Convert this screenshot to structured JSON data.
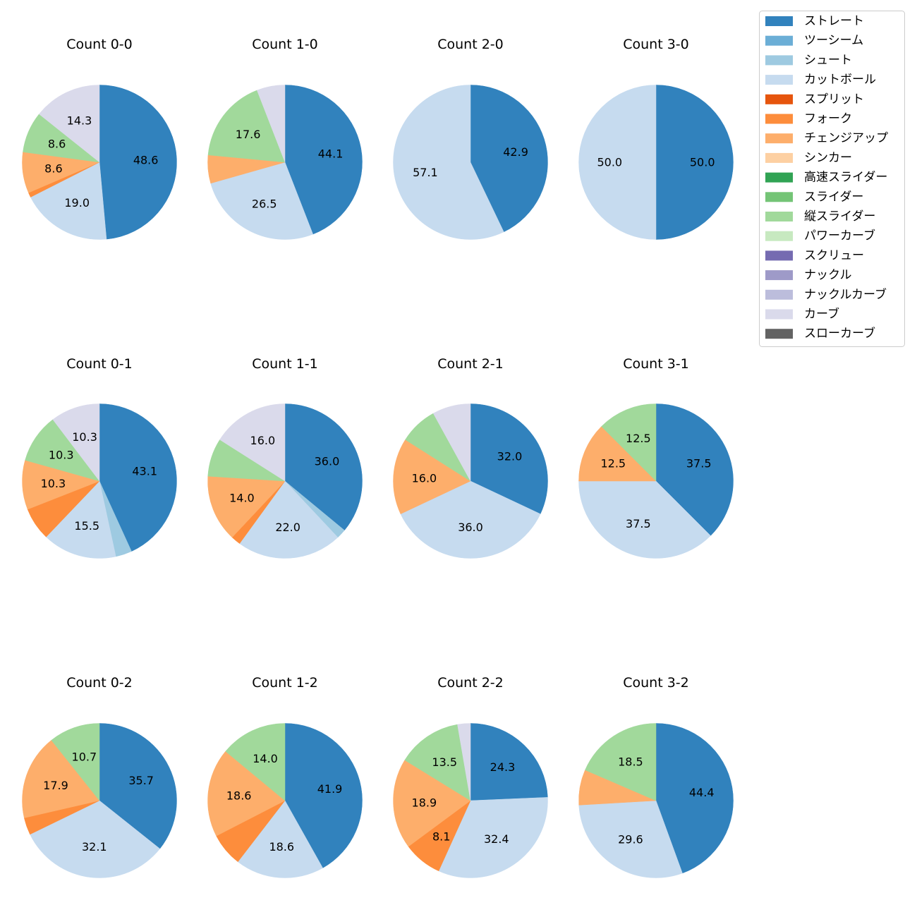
{
  "chart_data": {
    "type": "pie",
    "legend": {
      "placement": "top-right",
      "entries": [
        {
          "name": "ストレート",
          "color": "#3182bd"
        },
        {
          "name": "ツーシーム",
          "color": "#6baed6"
        },
        {
          "name": "シュート",
          "color": "#9ecae1"
        },
        {
          "name": "カットボール",
          "color": "#c6dbef"
        },
        {
          "name": "スプリット",
          "color": "#e6550d"
        },
        {
          "name": "フォーク",
          "color": "#fd8d3c"
        },
        {
          "name": "チェンジアップ",
          "color": "#fdae6b"
        },
        {
          "name": "シンカー",
          "color": "#fdd0a2"
        },
        {
          "name": "高速スライダー",
          "color": "#31a354"
        },
        {
          "name": "スライダー",
          "color": "#74c476"
        },
        {
          "name": "縦スライダー",
          "color": "#a1d99b"
        },
        {
          "name": "パワーカーブ",
          "color": "#c7e9c0"
        },
        {
          "name": "スクリュー",
          "color": "#756bb1"
        },
        {
          "name": "ナックル",
          "color": "#9e9ac8"
        },
        {
          "name": "ナックルカーブ",
          "color": "#bcbddc"
        },
        {
          "name": "カーブ",
          "color": "#dadaeb"
        },
        {
          "name": "スローカーブ",
          "color": "#636363"
        }
      ]
    },
    "charts": [
      {
        "title": "Count 0-0",
        "slices": [
          {
            "type": "ストレート",
            "value": 48.6,
            "label": "48.6"
          },
          {
            "type": "カットボール",
            "value": 19.0,
            "label": "19.0"
          },
          {
            "type": "フォーク",
            "value": 1.0,
            "label": ""
          },
          {
            "type": "チェンジアップ",
            "value": 8.6,
            "label": "8.6"
          },
          {
            "type": "縦スライダー",
            "value": 8.6,
            "label": "8.6"
          },
          {
            "type": "カーブ",
            "value": 14.3,
            "label": "14.3"
          }
        ]
      },
      {
        "title": "Count 1-0",
        "slices": [
          {
            "type": "ストレート",
            "value": 44.1,
            "label": "44.1"
          },
          {
            "type": "カットボール",
            "value": 26.5,
            "label": "26.5"
          },
          {
            "type": "チェンジアップ",
            "value": 5.9,
            "label": ""
          },
          {
            "type": "縦スライダー",
            "value": 17.6,
            "label": "17.6"
          },
          {
            "type": "カーブ",
            "value": 5.9,
            "label": ""
          }
        ]
      },
      {
        "title": "Count 2-0",
        "slices": [
          {
            "type": "ストレート",
            "value": 42.9,
            "label": "42.9"
          },
          {
            "type": "カットボール",
            "value": 57.1,
            "label": "57.1"
          }
        ]
      },
      {
        "title": "Count 3-0",
        "slices": [
          {
            "type": "ストレート",
            "value": 50.0,
            "label": "50.0"
          },
          {
            "type": "カットボール",
            "value": 50.0,
            "label": "50.0"
          }
        ]
      },
      {
        "title": "Count 0-1",
        "slices": [
          {
            "type": "ストレート",
            "value": 43.1,
            "label": "43.1"
          },
          {
            "type": "シュート",
            "value": 3.4,
            "label": ""
          },
          {
            "type": "カットボール",
            "value": 15.5,
            "label": "15.5"
          },
          {
            "type": "フォーク",
            "value": 6.9,
            "label": ""
          },
          {
            "type": "チェンジアップ",
            "value": 10.3,
            "label": "10.3"
          },
          {
            "type": "縦スライダー",
            "value": 10.3,
            "label": "10.3"
          },
          {
            "type": "カーブ",
            "value": 10.3,
            "label": "10.3"
          }
        ]
      },
      {
        "title": "Count 1-1",
        "slices": [
          {
            "type": "ストレート",
            "value": 36.0,
            "label": "36.0"
          },
          {
            "type": "シュート",
            "value": 2.0,
            "label": ""
          },
          {
            "type": "カットボール",
            "value": 22.0,
            "label": "22.0"
          },
          {
            "type": "フォーク",
            "value": 2.0,
            "label": ""
          },
          {
            "type": "チェンジアップ",
            "value": 14.0,
            "label": "14.0"
          },
          {
            "type": "縦スライダー",
            "value": 8.0,
            "label": ""
          },
          {
            "type": "カーブ",
            "value": 16.0,
            "label": "16.0"
          }
        ]
      },
      {
        "title": "Count 2-1",
        "slices": [
          {
            "type": "ストレート",
            "value": 32.0,
            "label": "32.0"
          },
          {
            "type": "カットボール",
            "value": 36.0,
            "label": "36.0"
          },
          {
            "type": "チェンジアップ",
            "value": 16.0,
            "label": "16.0"
          },
          {
            "type": "縦スライダー",
            "value": 8.0,
            "label": ""
          },
          {
            "type": "カーブ",
            "value": 8.0,
            "label": ""
          }
        ]
      },
      {
        "title": "Count 3-1",
        "slices": [
          {
            "type": "ストレート",
            "value": 37.5,
            "label": "37.5"
          },
          {
            "type": "カットボール",
            "value": 37.5,
            "label": "37.5"
          },
          {
            "type": "チェンジアップ",
            "value": 12.5,
            "label": "12.5"
          },
          {
            "type": "縦スライダー",
            "value": 12.5,
            "label": "12.5"
          }
        ]
      },
      {
        "title": "Count 0-2",
        "slices": [
          {
            "type": "ストレート",
            "value": 35.7,
            "label": "35.7"
          },
          {
            "type": "カットボール",
            "value": 32.1,
            "label": "32.1"
          },
          {
            "type": "フォーク",
            "value": 3.6,
            "label": ""
          },
          {
            "type": "チェンジアップ",
            "value": 17.9,
            "label": "17.9"
          },
          {
            "type": "縦スライダー",
            "value": 10.7,
            "label": "10.7"
          }
        ]
      },
      {
        "title": "Count 1-2",
        "slices": [
          {
            "type": "ストレート",
            "value": 41.9,
            "label": "41.9"
          },
          {
            "type": "カットボール",
            "value": 18.6,
            "label": "18.6"
          },
          {
            "type": "フォーク",
            "value": 7.0,
            "label": ""
          },
          {
            "type": "チェンジアップ",
            "value": 18.6,
            "label": "18.6"
          },
          {
            "type": "縦スライダー",
            "value": 14.0,
            "label": "14.0"
          }
        ]
      },
      {
        "title": "Count 2-2",
        "slices": [
          {
            "type": "ストレート",
            "value": 24.3,
            "label": "24.3"
          },
          {
            "type": "カットボール",
            "value": 32.4,
            "label": "32.4"
          },
          {
            "type": "フォーク",
            "value": 8.1,
            "label": "8.1"
          },
          {
            "type": "チェンジアップ",
            "value": 18.9,
            "label": "18.9"
          },
          {
            "type": "縦スライダー",
            "value": 13.5,
            "label": "13.5"
          },
          {
            "type": "カーブ",
            "value": 2.7,
            "label": ""
          }
        ]
      },
      {
        "title": "Count 3-2",
        "slices": [
          {
            "type": "ストレート",
            "value": 44.4,
            "label": "44.4"
          },
          {
            "type": "カットボール",
            "value": 29.6,
            "label": "29.6"
          },
          {
            "type": "チェンジアップ",
            "value": 7.4,
            "label": ""
          },
          {
            "type": "縦スライダー",
            "value": 18.5,
            "label": "18.5"
          }
        ]
      }
    ]
  }
}
